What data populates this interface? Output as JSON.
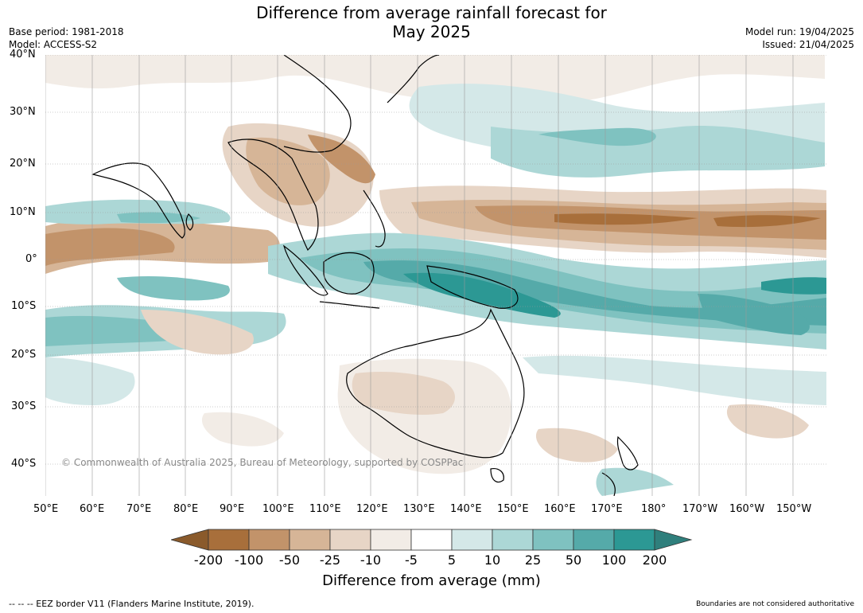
{
  "title_line1": "Difference from average rainfall forecast for",
  "title_line2": "May 2025",
  "base_period": "Base period: 1981-2018",
  "model": "Model: ACCESS-S2",
  "model_run": "Model run: 19/04/2025",
  "issued": "Issued: 21/04/2025",
  "lat_labels": [
    "40°N",
    "30°N",
    "20°N",
    "10°N",
    "0°",
    "10°S",
    "20°S",
    "30°S",
    "40°S"
  ],
  "lon_labels": [
    "50°E",
    "60°E",
    "70°E",
    "80°E",
    "90°E",
    "100°E",
    "110°E",
    "120°E",
    "130°E",
    "140°E",
    "150°E",
    "160°E",
    "170°E",
    "180°",
    "170°W",
    "160°W",
    "150°W"
  ],
  "colorbar": {
    "ticks": [
      "-200",
      "-100",
      "-50",
      "-25",
      "-10",
      "-5",
      "5",
      "10",
      "25",
      "50",
      "100",
      "200"
    ],
    "colors": [
      "#8a5a2b",
      "#a86f3b",
      "#c2936a",
      "#d6b597",
      "#e7d5c6",
      "#f2ece6",
      "#ffffff",
      "#d4e8e8",
      "#acd7d6",
      "#7fc2c0",
      "#55aaa9",
      "#2c9894",
      "#2f7f7c"
    ],
    "title": "Difference from average (mm)"
  },
  "copyright": "© Commonwealth of Australia 2025, Bureau of Meteorology, supported by COSPPac",
  "footer_left": "--  --  -- EEZ border V11 (Flanders Marine Institute, 2019).",
  "footer_right": "Boundaries are not considered authoritative"
}
